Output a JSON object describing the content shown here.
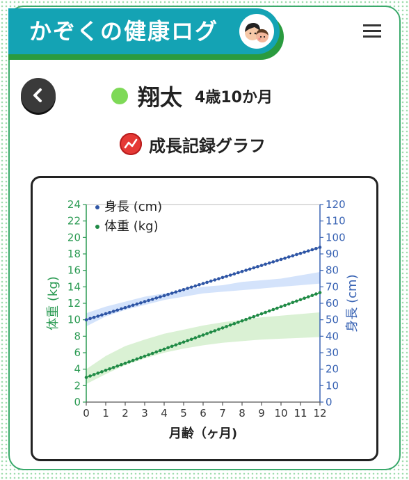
{
  "header": {
    "title": "かぞくの健康ログ"
  },
  "child": {
    "name": "翔太",
    "age": "4歳10か月",
    "dot_color": "#7ed957"
  },
  "section": {
    "title": "成長記録グラフ"
  },
  "chart_data": {
    "type": "line",
    "xlabel": "月齢（ヶ月)",
    "x_ticks": [
      "0",
      "1",
      "2",
      "3",
      "4",
      "5",
      "6",
      "7",
      "8",
      "9",
      "10",
      "11",
      "12"
    ],
    "xlim": [
      0,
      12
    ],
    "y_left": {
      "label": "体重 (kg)",
      "lim": [
        0,
        24
      ],
      "ticks": [
        "0",
        "2",
        "4",
        "6",
        "8",
        "10",
        "12",
        "14",
        "16",
        "18",
        "20",
        "22",
        "24"
      ],
      "color": "#2a9a52"
    },
    "y_right": {
      "label": "身長 (cm)",
      "lim": [
        0,
        120
      ],
      "ticks": [
        "0",
        "10",
        "20",
        "30",
        "40",
        "50",
        "60",
        "70",
        "80",
        "90",
        "100",
        "110",
        "120"
      ],
      "color": "#3a64b4"
    },
    "legend": {
      "placement": "top-left"
    },
    "series": [
      {
        "name": "身長 (cm)",
        "axis": "right",
        "color": "#2e55a5",
        "x_start": 0,
        "x_step": 0.2,
        "y_start": 50,
        "y_end": 94
      },
      {
        "name": "体重 (kg)",
        "axis": "left",
        "color": "#1f8a45",
        "x_start": 0,
        "x_step": 0.2,
        "y_start": 3.0,
        "y_end": 13.3
      }
    ],
    "bands": [
      {
        "axis": "right",
        "color": "#cfe0fb",
        "x": [
          0,
          1,
          2,
          3,
          4,
          5,
          6,
          7,
          8,
          9,
          10,
          11,
          12
        ],
        "lower": [
          46,
          52,
          56,
          59,
          62,
          64,
          66,
          67,
          68,
          69,
          70,
          71,
          72
        ],
        "upper": [
          54,
          58,
          61,
          64,
          66,
          68,
          70,
          71,
          73,
          74,
          75,
          77,
          79
        ]
      },
      {
        "axis": "left",
        "color": "#d6efcf",
        "x": [
          0,
          1,
          2,
          3,
          4,
          5,
          6,
          7,
          8,
          9,
          10,
          11,
          12
        ],
        "lower": [
          2.2,
          3.4,
          4.5,
          5.3,
          6.0,
          6.5,
          6.9,
          7.2,
          7.4,
          7.6,
          7.7,
          7.8,
          7.9
        ],
        "upper": [
          4.0,
          5.6,
          6.8,
          7.6,
          8.3,
          8.8,
          9.3,
          9.7,
          10.0,
          10.3,
          10.5,
          10.7,
          10.9
        ]
      }
    ]
  }
}
